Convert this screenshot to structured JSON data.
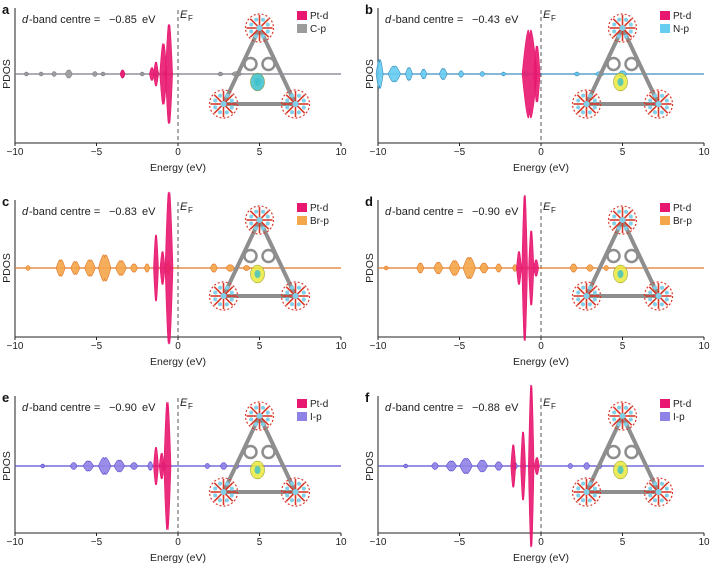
{
  "figure": {
    "x_label": "Energy (eV)",
    "y_label": "PDOS",
    "ef_symbol": "E",
    "ef_subscript": "F",
    "d_prefix": "d",
    "d_suffix": "-band centre = ",
    "unit": "eV",
    "x_ticks": [
      "−10",
      "−5",
      "0",
      "5",
      "10"
    ]
  },
  "colors": {
    "pt": "#e8176f",
    "c": "#9b9b9b",
    "n": "#66ccf0",
    "br": "#f4a64a",
    "i": "#8f82e6",
    "dash": "#555555",
    "axis": "#222222",
    "bond": "#8e8e8e",
    "oxygen": "#d73a2a",
    "ptatom": "#7fd0e8",
    "density": "#e9e83c",
    "density_blue": "#3bbfc9"
  },
  "chart_data": [
    {
      "panel": "a",
      "type": "area",
      "d_band_value": "−0.85",
      "legend": [
        "Pt-d",
        "C-p"
      ],
      "legend_colors": [
        "#e8176f",
        "#9b9b9b"
      ],
      "series_color": "#9b9b9b",
      "series_outline": "#7c7c8a",
      "density_color": "#3bbfc9",
      "xlim": [
        -10,
        10
      ],
      "ylim": [
        -1,
        1
      ],
      "pt_peaks": [
        [
          -1.35,
          0.12,
          0.15
        ],
        [
          -0.9,
          0.2,
          0.38
        ],
        [
          -0.55,
          0.2,
          0.62
        ],
        [
          -1.6,
          0.07,
          0.08
        ],
        [
          -3.4,
          0.1,
          0.05
        ]
      ],
      "p_peaks": [
        [
          -9.3,
          0.1,
          0.02
        ],
        [
          -8.4,
          0.1,
          0.02
        ],
        [
          -7.6,
          0.12,
          0.03
        ],
        [
          -6.7,
          0.2,
          0.05
        ],
        [
          -5.1,
          0.15,
          0.03
        ],
        [
          -4.6,
          0.12,
          0.02
        ],
        [
          -3.4,
          0.12,
          0.05
        ],
        [
          -2.2,
          0.1,
          0.02
        ],
        [
          -1.3,
          0.1,
          0.04
        ],
        [
          -0.8,
          0.08,
          0.03
        ],
        [
          2.6,
          0.15,
          0.02
        ],
        [
          3.6,
          0.3,
          0.03
        ]
      ]
    },
    {
      "panel": "b",
      "type": "area",
      "d_band_value": "−0.43",
      "legend": [
        "Pt-d",
        "N-p"
      ],
      "legend_colors": [
        "#e8176f",
        "#66ccf0"
      ],
      "series_color": "#66ccf0",
      "series_outline": "#3a8fc0",
      "density_color": "#e9e83c",
      "xlim": [
        -10,
        10
      ],
      "ylim": [
        -1,
        1
      ],
      "pt_peaks": [
        [
          -0.7,
          0.42,
          0.55
        ],
        [
          -0.25,
          0.18,
          0.35
        ]
      ],
      "p_peaks": [
        [
          -9.9,
          0.2,
          0.18
        ],
        [
          -9.0,
          0.35,
          0.1
        ],
        [
          -8.1,
          0.2,
          0.08
        ],
        [
          -7.2,
          0.18,
          0.06
        ],
        [
          -6.0,
          0.22,
          0.07
        ],
        [
          -4.9,
          0.15,
          0.04
        ],
        [
          -3.6,
          0.15,
          0.03
        ],
        [
          -2.3,
          0.12,
          0.02
        ],
        [
          -0.9,
          0.15,
          0.03
        ],
        [
          2.2,
          0.15,
          0.02
        ],
        [
          3.6,
          0.25,
          0.03
        ],
        [
          5.0,
          0.25,
          0.04
        ]
      ]
    },
    {
      "panel": "c",
      "type": "area",
      "d_band_value": "−0.83",
      "legend": [
        "Pt-d",
        "Br-p"
      ],
      "legend_colors": [
        "#e8176f",
        "#f4a64a"
      ],
      "series_color": "#f4a64a",
      "series_outline": "#e07a2a",
      "density_color": "#e9e83c",
      "xlim": [
        -10,
        10
      ],
      "ylim": [
        -1,
        1
      ],
      "pt_peaks": [
        [
          -1.35,
          0.14,
          0.4
        ],
        [
          -0.55,
          0.22,
          0.92
        ],
        [
          -0.95,
          0.1,
          0.2
        ]
      ],
      "p_peaks": [
        [
          -9.2,
          0.12,
          0.03
        ],
        [
          -7.2,
          0.25,
          0.1
        ],
        [
          -6.3,
          0.25,
          0.08
        ],
        [
          -5.4,
          0.3,
          0.1
        ],
        [
          -4.5,
          0.35,
          0.16
        ],
        [
          -3.5,
          0.3,
          0.09
        ],
        [
          -2.7,
          0.2,
          0.05
        ],
        [
          -1.9,
          0.15,
          0.05
        ],
        [
          -0.6,
          0.12,
          0.08
        ],
        [
          2.2,
          0.2,
          0.05
        ],
        [
          3.2,
          0.25,
          0.04
        ],
        [
          4.2,
          0.2,
          0.03
        ]
      ]
    },
    {
      "panel": "d",
      "type": "area",
      "d_band_value": "−0.90",
      "legend": [
        "Pt-d",
        "Br-p"
      ],
      "legend_colors": [
        "#e8176f",
        "#f4a64a"
      ],
      "series_color": "#f4a64a",
      "series_outline": "#e07a2a",
      "density_color": "#e9e83c",
      "xlim": [
        -10,
        10
      ],
      "ylim": [
        -1,
        1
      ],
      "pt_peaks": [
        [
          -1.0,
          0.16,
          0.88
        ],
        [
          -0.6,
          0.15,
          0.45
        ],
        [
          -1.35,
          0.1,
          0.2
        ],
        [
          -0.3,
          0.08,
          0.1
        ]
      ],
      "p_peaks": [
        [
          -9.5,
          0.12,
          0.02
        ],
        [
          -7.4,
          0.2,
          0.06
        ],
        [
          -6.3,
          0.25,
          0.07
        ],
        [
          -5.3,
          0.3,
          0.09
        ],
        [
          -4.4,
          0.35,
          0.13
        ],
        [
          -3.5,
          0.25,
          0.06
        ],
        [
          -2.6,
          0.18,
          0.05
        ],
        [
          -1.6,
          0.12,
          0.04
        ],
        [
          2.0,
          0.2,
          0.05
        ],
        [
          3.0,
          0.2,
          0.04
        ],
        [
          4.0,
          0.15,
          0.03
        ]
      ]
    },
    {
      "panel": "e",
      "type": "area",
      "d_band_value": "−0.90",
      "legend": [
        "Pt-d",
        "I-p"
      ],
      "legend_colors": [
        "#e8176f",
        "#8f82e6"
      ],
      "series_color": "#8f82e6",
      "series_outline": "#5a4fd0",
      "density_color": "#e9e83c",
      "xlim": [
        -10,
        10
      ],
      "ylim": [
        -1,
        1
      ],
      "pt_peaks": [
        [
          -1.35,
          0.12,
          0.22
        ],
        [
          -0.65,
          0.2,
          0.75
        ],
        [
          -1.0,
          0.1,
          0.15
        ]
      ],
      "p_peaks": [
        [
          -8.3,
          0.1,
          0.02
        ],
        [
          -6.4,
          0.2,
          0.04
        ],
        [
          -5.5,
          0.3,
          0.06
        ],
        [
          -4.5,
          0.35,
          0.1
        ],
        [
          -3.6,
          0.3,
          0.07
        ],
        [
          -2.7,
          0.22,
          0.04
        ],
        [
          -1.7,
          0.15,
          0.05
        ],
        [
          -0.9,
          0.1,
          0.04
        ],
        [
          1.8,
          0.15,
          0.03
        ],
        [
          2.8,
          0.2,
          0.04
        ],
        [
          3.6,
          0.15,
          0.03
        ]
      ]
    },
    {
      "panel": "f",
      "type": "area",
      "d_band_value": "−0.88",
      "legend": [
        "Pt-d",
        "I-p"
      ],
      "legend_colors": [
        "#e8176f",
        "#8f82e6"
      ],
      "series_color": "#8f82e6",
      "series_outline": "#5a4fd0",
      "density_color": "#e9e83c",
      "xlim": [
        -10,
        10
      ],
      "ylim": [
        -1,
        1
      ],
      "pt_peaks": [
        [
          -0.6,
          0.16,
          0.95
        ],
        [
          -1.1,
          0.12,
          0.4
        ],
        [
          -1.7,
          0.1,
          0.25
        ],
        [
          -0.25,
          0.07,
          0.1
        ]
      ],
      "p_peaks": [
        [
          -8.3,
          0.1,
          0.02
        ],
        [
          -6.5,
          0.2,
          0.04
        ],
        [
          -5.5,
          0.3,
          0.06
        ],
        [
          -4.6,
          0.35,
          0.09
        ],
        [
          -3.6,
          0.3,
          0.07
        ],
        [
          -2.6,
          0.22,
          0.05
        ],
        [
          -1.6,
          0.15,
          0.04
        ],
        [
          1.8,
          0.15,
          0.03
        ],
        [
          2.8,
          0.18,
          0.04
        ],
        [
          3.6,
          0.15,
          0.03
        ]
      ]
    }
  ]
}
